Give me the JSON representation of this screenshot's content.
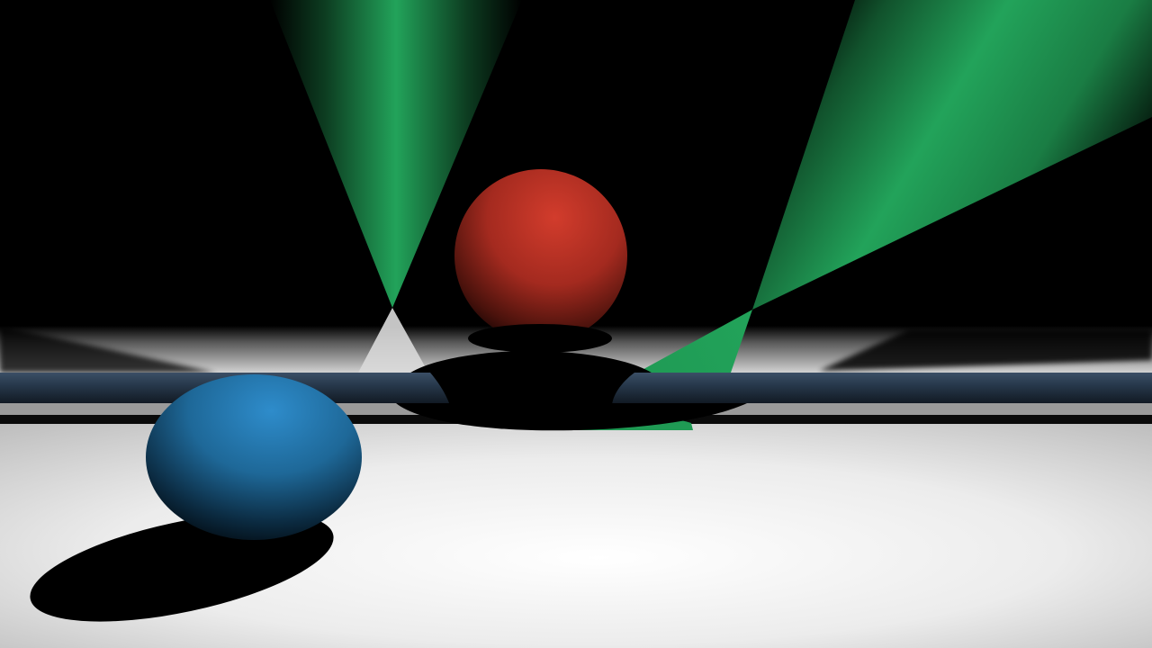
{
  "scene": {
    "colors": {
      "background": "#000000",
      "floor_center": "#ffffff",
      "floor_edge": "#c8c8c8",
      "bar": "#26384a",
      "beam": "#22a35a",
      "shadow": "#000000",
      "red_sphere": "#c8382a",
      "blue_sphere": "#2c86c0"
    },
    "objects": [
      "floor",
      "red-sphere",
      "blue-sphere",
      "horizontal-bar",
      "green-light-cone-left",
      "green-light-cone-right"
    ]
  }
}
